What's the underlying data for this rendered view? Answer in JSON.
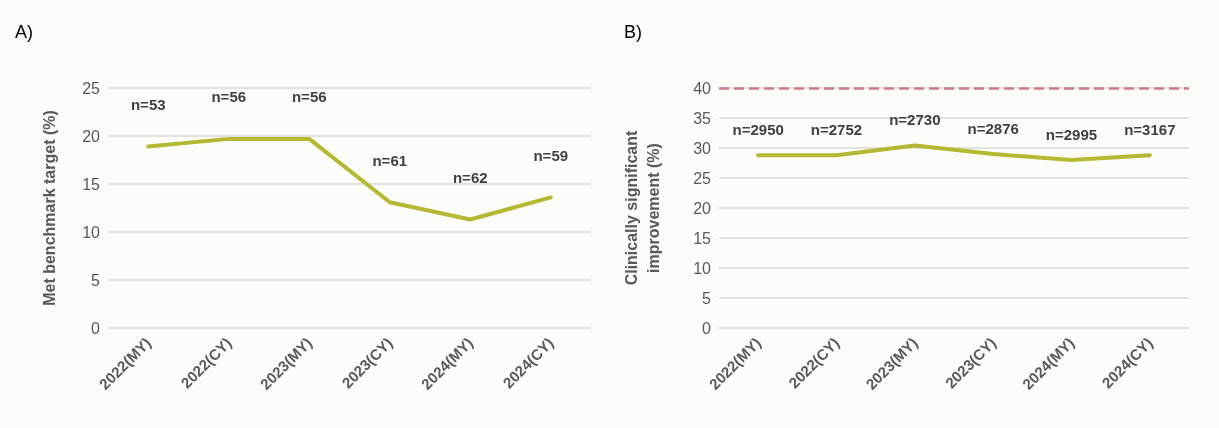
{
  "chart_data": [
    {
      "type": "line",
      "title": "A)",
      "ylabel": "Met benchmark target (%)",
      "categories": [
        "2022(MY)",
        "2022(CY)",
        "2023(MY)",
        "2023(CY)",
        "2024(MY)",
        "2024(CY)"
      ],
      "series": [
        {
          "color": "#b5b833",
          "values": [
            18.9,
            19.7,
            19.7,
            13.1,
            11.3,
            13.6
          ]
        }
      ],
      "ylim": [
        0,
        25
      ],
      "yticks": [
        0,
        5,
        10,
        15,
        20,
        25
      ],
      "grid": "y",
      "marker": "none",
      "line_style": "solid",
      "annotations": [
        {
          "text": "n=53",
          "x": "2022(MY)",
          "y": 18.9
        },
        {
          "text": "n=56",
          "x": "2022(CY)",
          "y": 19.7
        },
        {
          "text": "n=56",
          "x": "2023(MY)",
          "y": 19.7
        },
        {
          "text": "n=61",
          "x": "2023(CY)",
          "y": 13.1
        },
        {
          "text": "n=62",
          "x": "2024(MY)",
          "y": 11.3
        },
        {
          "text": "n=59",
          "x": "2024(CY)",
          "y": 13.6
        }
      ]
    },
    {
      "type": "line",
      "title": "B)",
      "ylabel": "Clinically significant\nimprovement (%)",
      "categories": [
        "2022(MY)",
        "2022(CY)",
        "2023(MY)",
        "2023(CY)",
        "2024(MY)",
        "2024(CY)"
      ],
      "series": [
        {
          "color": "#b5b833",
          "values": [
            28.8,
            28.8,
            30.4,
            29.0,
            28.0,
            28.8
          ]
        }
      ],
      "ylim": [
        0,
        40
      ],
      "yticks": [
        0,
        5,
        10,
        15,
        20,
        25,
        30,
        35,
        40
      ],
      "grid": "y",
      "marker": "none",
      "line_style": "solid",
      "ref_lines": [
        {
          "axis": "y",
          "value": 40,
          "color": "#d07a8c",
          "line_style": "dashed"
        }
      ],
      "annotations": [
        {
          "text": "n=2950",
          "x": "2022(MY)",
          "y": 28.8
        },
        {
          "text": "n=2752",
          "x": "2022(CY)",
          "y": 28.8
        },
        {
          "text": "n=2730",
          "x": "2023(MY)",
          "y": 30.4
        },
        {
          "text": "n=2876",
          "x": "2023(CY)",
          "y": 29.0
        },
        {
          "text": "n=2995",
          "x": "2024(MY)",
          "y": 28.0
        },
        {
          "text": "n=3167",
          "x": "2024(CY)",
          "y": 28.8
        }
      ]
    }
  ]
}
